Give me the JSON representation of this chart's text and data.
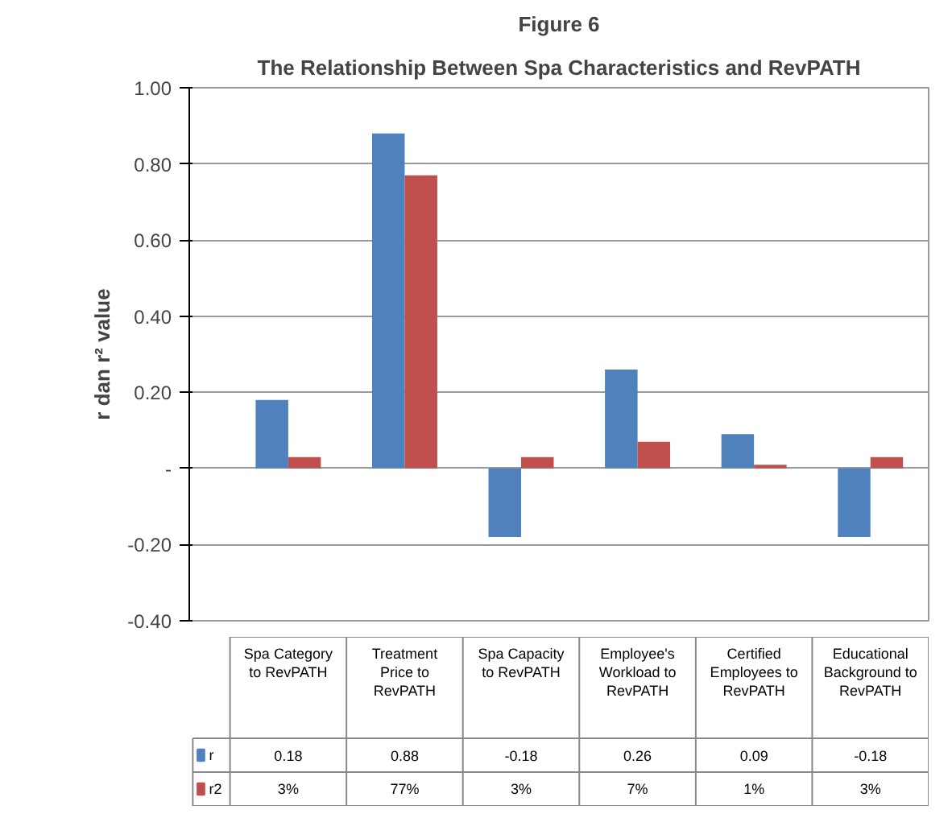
{
  "chart_data": {
    "type": "bar",
    "title": "Figure 6",
    "subtitle": "The Relationship Between Spa Characteristics and RevPATH",
    "ylabel": "r dan r² value",
    "categories": [
      "Spa Category to RevPATH",
      "Treatment Price to RevPATH",
      "Spa Capacity to RevPATH",
      "Employee's Workload to RevPATH",
      "Certified Employees to RevPATH",
      "Educational Background to RevPATH"
    ],
    "series": [
      {
        "name": "r",
        "color": "#4f81bd",
        "values": [
          0.18,
          0.88,
          -0.18,
          0.26,
          0.09,
          -0.18
        ],
        "value_labels": [
          "0.18",
          "0.88",
          "-0.18",
          "0.26",
          "0.09",
          "-0.18"
        ]
      },
      {
        "name": "r2",
        "color": "#c0504d",
        "values": [
          0.03,
          0.77,
          0.03,
          0.07,
          0.01,
          0.03
        ],
        "value_labels": [
          "3%",
          "77%",
          "3%",
          "7%",
          "1%",
          "3%"
        ]
      }
    ],
    "ylim": [
      -0.4,
      1.0
    ],
    "yticks": [
      {
        "value": 1.0,
        "label": "1.00"
      },
      {
        "value": 0.8,
        "label": "0.80"
      },
      {
        "value": 0.6,
        "label": "0.60"
      },
      {
        "value": 0.4,
        "label": "0.40"
      },
      {
        "value": 0.2,
        "label": "0.20"
      },
      {
        "value": 0,
        "label": "-"
      },
      {
        "value": -0.2,
        "label": "-0.20"
      },
      {
        "value": -0.4,
        "label": "-0.40"
      }
    ],
    "grid": "y",
    "legend": "bottom"
  }
}
